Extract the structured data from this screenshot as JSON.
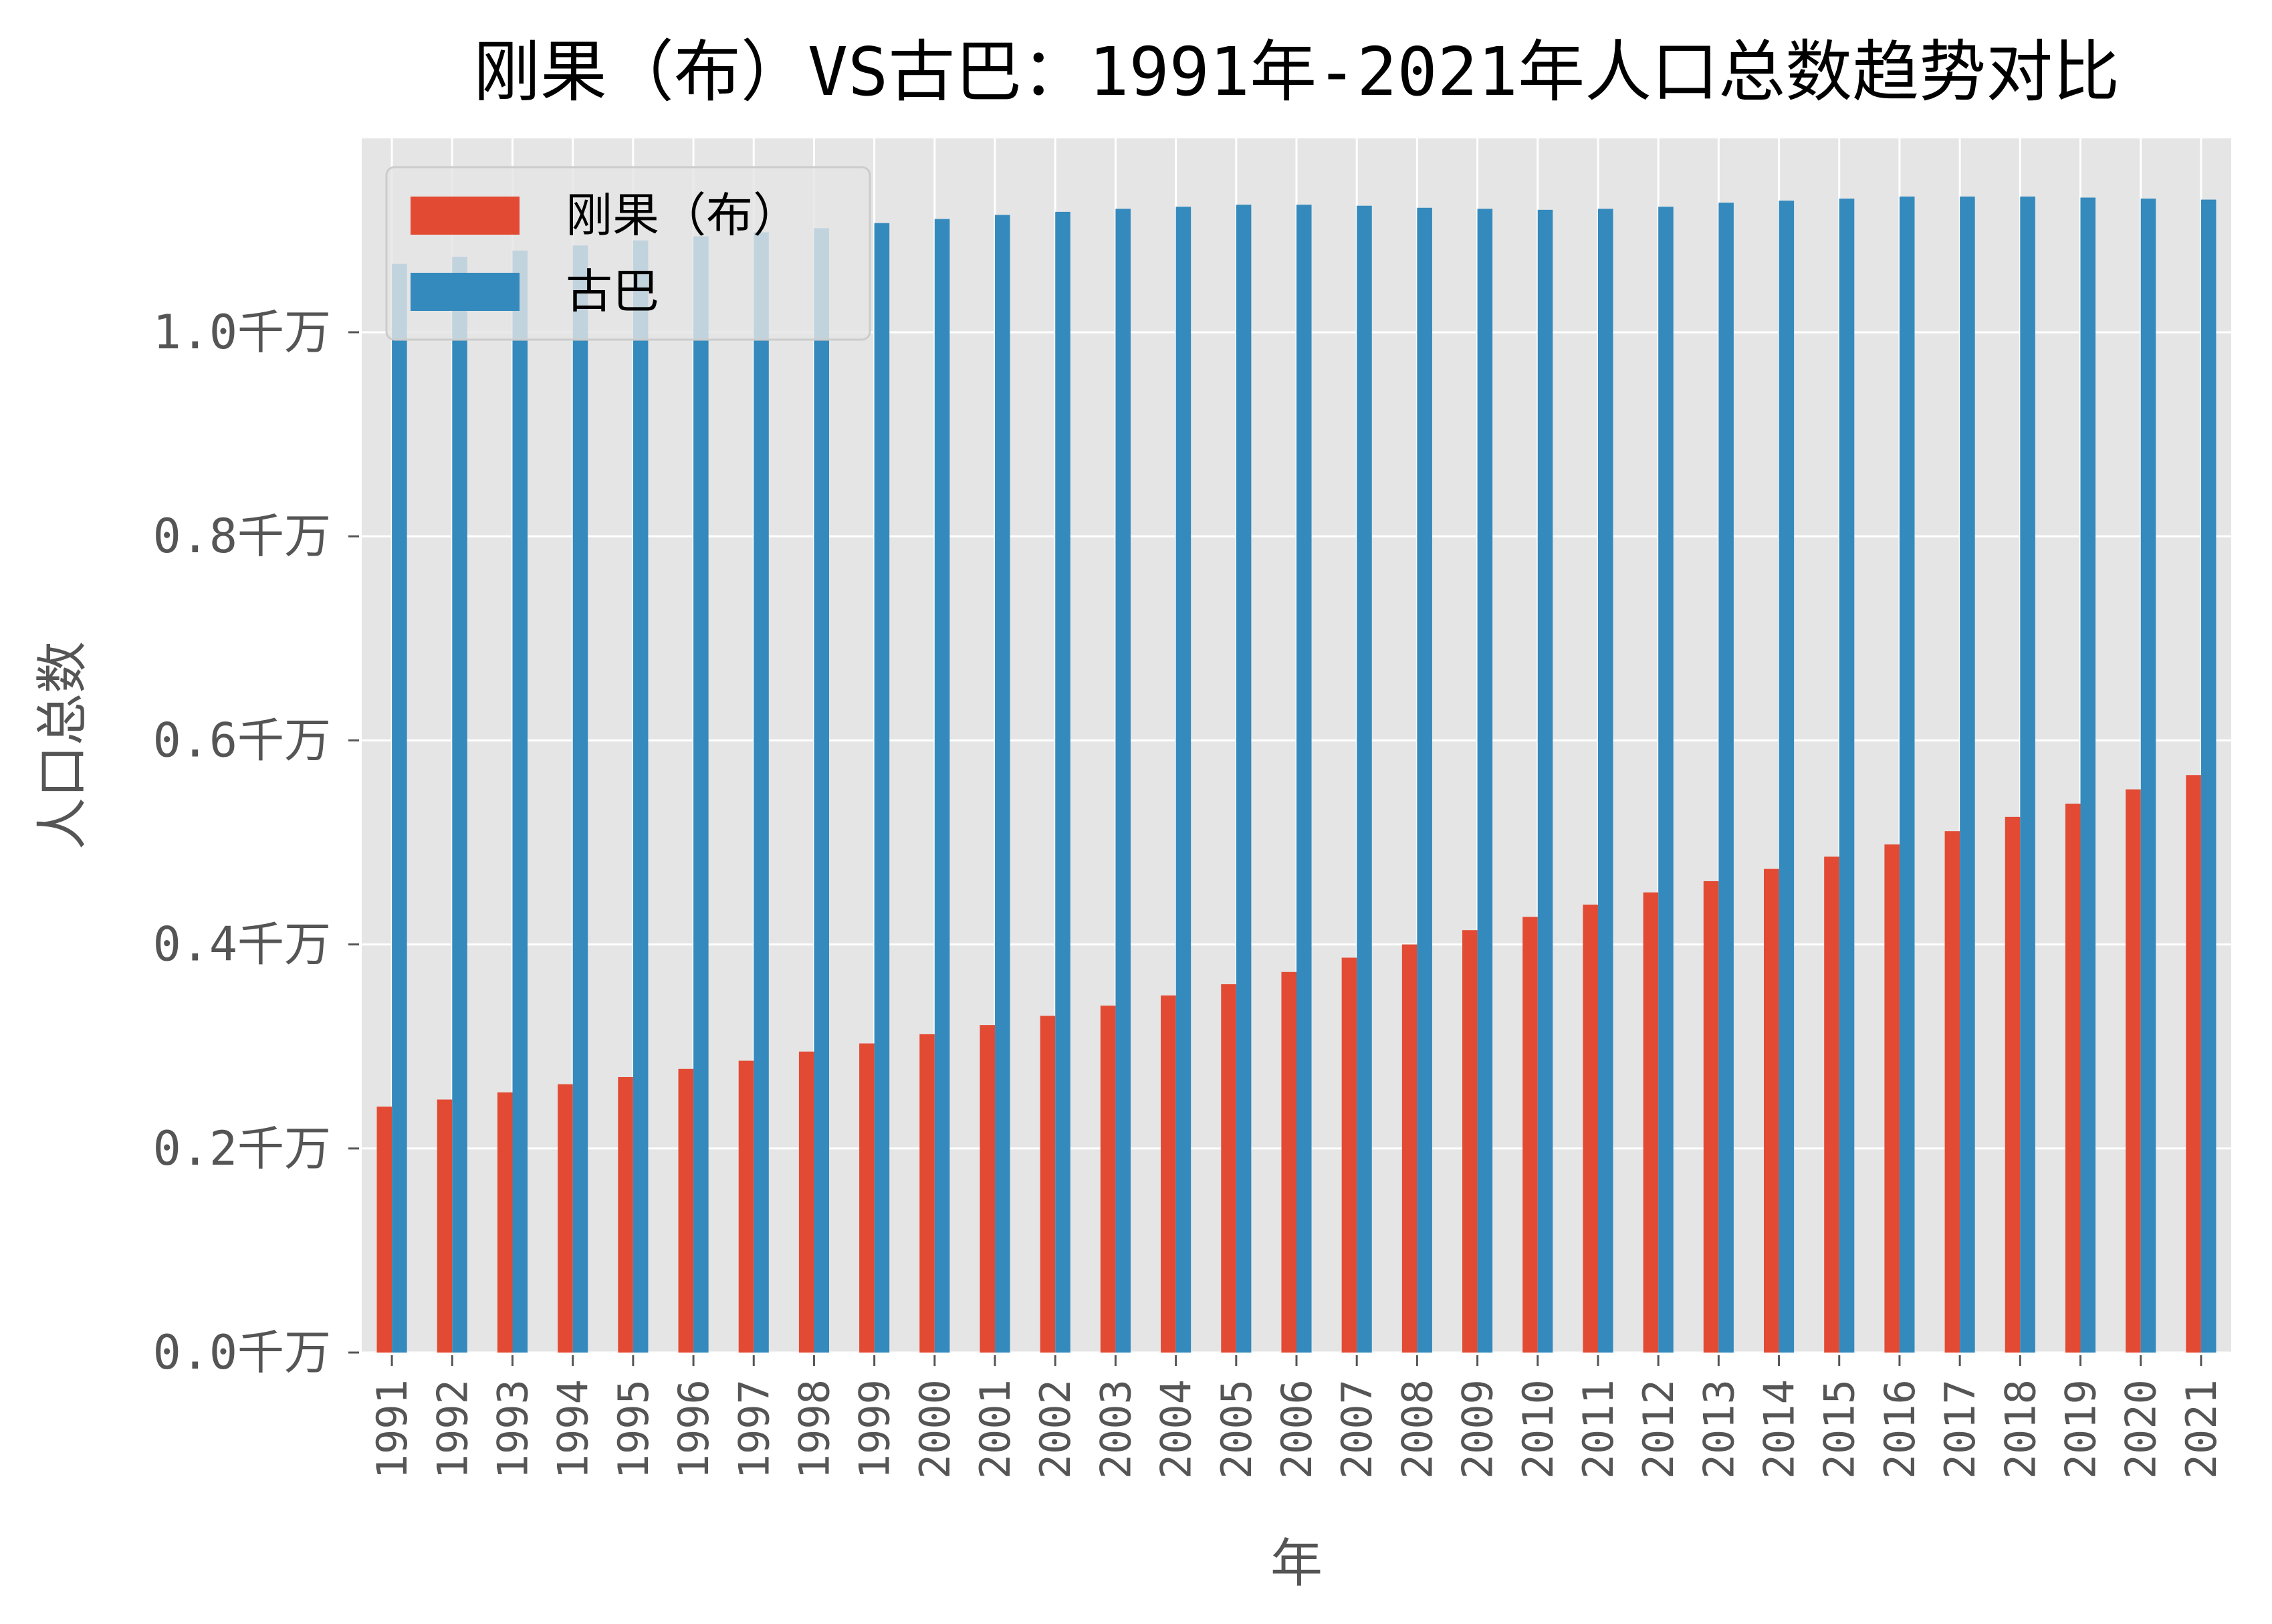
{
  "chart_data": {
    "type": "bar",
    "title": "刚果（布）VS古巴：1991年-2021年人口总数趋势对比",
    "xlabel": "年",
    "ylabel": "人口总数",
    "ylim": [
      0,
      1.19
    ],
    "yticks": [
      {
        "value": 0.0,
        "label": "0.0千万"
      },
      {
        "value": 0.2,
        "label": "0.2千万"
      },
      {
        "value": 0.4,
        "label": "0.4千万"
      },
      {
        "value": 0.6,
        "label": "0.6千万"
      },
      {
        "value": 0.8,
        "label": "0.8千万"
      },
      {
        "value": 1.0,
        "label": "1.0千万"
      }
    ],
    "grid": true,
    "legend_position": "top-left",
    "categories": [
      "1991",
      "1992",
      "1993",
      "1994",
      "1995",
      "1996",
      "1997",
      "1998",
      "1999",
      "2000",
      "2001",
      "2002",
      "2003",
      "2004",
      "2005",
      "2006",
      "2007",
      "2008",
      "2009",
      "2010",
      "2011",
      "2012",
      "2013",
      "2014",
      "2015",
      "2016",
      "2017",
      "2018",
      "2019",
      "2020",
      "2021"
    ],
    "series": [
      {
        "name": "刚果（布）",
        "color": "#e24a33",
        "values": [
          0.241,
          0.248,
          0.255,
          0.263,
          0.27,
          0.278,
          0.286,
          0.295,
          0.303,
          0.312,
          0.321,
          0.33,
          0.34,
          0.35,
          0.361,
          0.373,
          0.387,
          0.4,
          0.414,
          0.427,
          0.439,
          0.451,
          0.462,
          0.474,
          0.486,
          0.498,
          0.511,
          0.525,
          0.538,
          0.552,
          0.566
        ]
      },
      {
        "name": "古巴",
        "color": "#348abd",
        "values": [
          1.067,
          1.074,
          1.08,
          1.085,
          1.09,
          1.094,
          1.098,
          1.102,
          1.107,
          1.111,
          1.115,
          1.118,
          1.121,
          1.123,
          1.125,
          1.125,
          1.124,
          1.122,
          1.121,
          1.12,
          1.121,
          1.123,
          1.127,
          1.129,
          1.131,
          1.133,
          1.133,
          1.133,
          1.132,
          1.131,
          1.13
        ]
      }
    ]
  },
  "colors": {
    "plot_background": "#e5e5e5",
    "grid": "#ffffff",
    "text": "#555555",
    "title": "#000000"
  }
}
